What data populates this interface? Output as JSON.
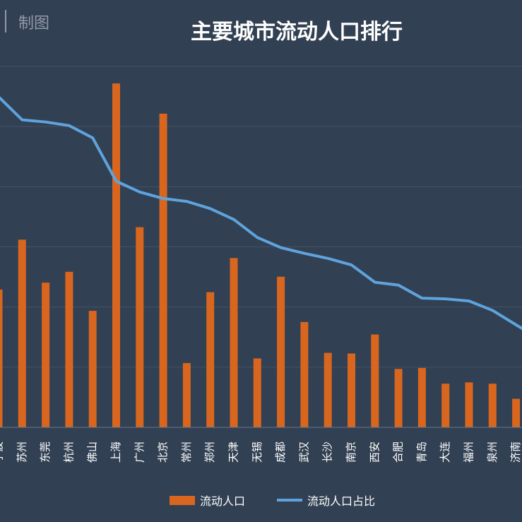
{
  "brand": "制图",
  "chart_data": {
    "type": "bar",
    "title": "主要城市流动人口排行",
    "categories": [
      "宁波",
      "苏州",
      "东莞",
      "杭州",
      "佛山",
      "上海",
      "广州",
      "北京",
      "常州",
      "郑州",
      "天津",
      "无锡",
      "成都",
      "武汉",
      "长沙",
      "南京",
      "西安",
      "合肥",
      "青岛",
      "大连",
      "福州",
      "泉州",
      "济南"
    ],
    "series": [
      {
        "name": "流动人口",
        "type": "bar",
        "color": "#d9661f",
        "values": [
          420,
          572,
          441,
          474,
          355,
          1048,
          610,
          956,
          196,
          412,
          516,
          210,
          459,
          321,
          227,
          225,
          283,
          178,
          181,
          133,
          137,
          133,
          87
        ]
      },
      {
        "name": "流动人口占比",
        "type": "line",
        "color": "#5fa3dc",
        "values": [
          0.458,
          0.426,
          0.423,
          0.418,
          0.401,
          0.341,
          0.326,
          0.317,
          0.313,
          0.303,
          0.288,
          0.263,
          0.249,
          0.241,
          0.234,
          0.225,
          0.201,
          0.197,
          0.179,
          0.178,
          0.175,
          0.162,
          0.142
        ]
      }
    ],
    "ylim": [
      0,
      1100
    ],
    "y2lim": [
      0,
      0.5
    ],
    "grid": true,
    "legend": "bottom"
  }
}
